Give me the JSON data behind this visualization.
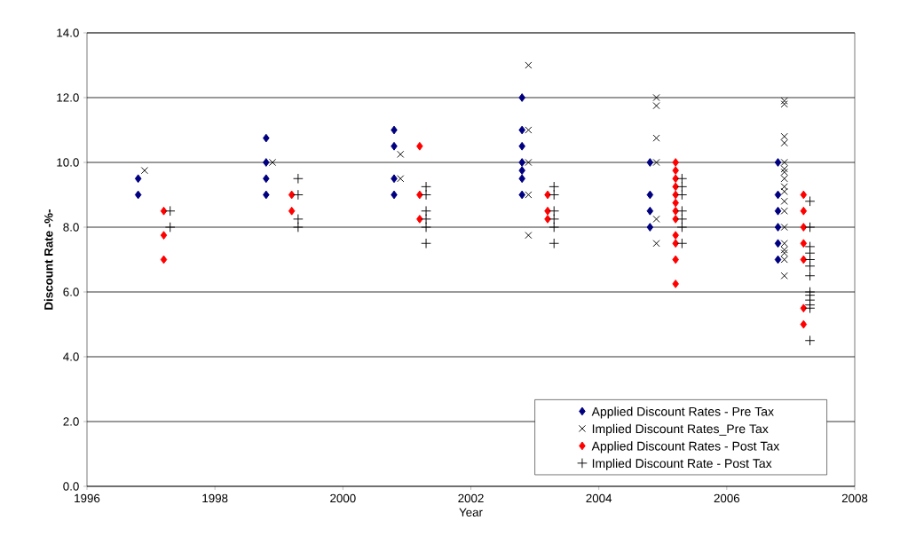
{
  "chart_data": {
    "type": "scatter",
    "xlabel": "Year",
    "ylabel": "Discount Rate -%-",
    "xlim": [
      1996,
      2008
    ],
    "ylim": [
      0,
      14
    ],
    "xticks": [
      1996,
      1998,
      2000,
      2002,
      2004,
      2006,
      2008
    ],
    "yticks": [
      {
        "value": 0,
        "label": "0.0"
      },
      {
        "value": 2,
        "label": "2.0"
      },
      {
        "value": 4,
        "label": "4.0"
      },
      {
        "value": 6,
        "label": "6.0"
      },
      {
        "value": 8,
        "label": "8.0"
      },
      {
        "value": 10,
        "label": "10.0"
      },
      {
        "value": 12,
        "label": "12.0"
      },
      {
        "value": 14,
        "label": "14.0"
      }
    ],
    "grid": "y",
    "legend": "bottom right",
    "series": [
      {
        "name": "Applied Discount Rates - Pre Tax",
        "color": "#000080",
        "marker": "diamond",
        "x": [
          1996.8,
          1996.8,
          1998.8,
          1998.8,
          1998.8,
          1998.8,
          2000.8,
          2000.8,
          2000.8,
          2000.8,
          2002.8,
          2002.8,
          2002.8,
          2002.8,
          2002.8,
          2002.8,
          2002.8,
          2004.8,
          2004.8,
          2004.8,
          2004.8,
          2006.8,
          2006.8,
          2006.8,
          2006.8,
          2006.8,
          2006.8
        ],
        "values": [
          9.5,
          9.0,
          10.75,
          10.0,
          9.5,
          9.0,
          11.0,
          10.5,
          9.5,
          9.0,
          12.0,
          11.0,
          10.5,
          10.0,
          9.75,
          9.5,
          9.0,
          10.0,
          9.0,
          8.5,
          8.0,
          10.0,
          9.0,
          8.5,
          8.0,
          7.5,
          7.0
        ]
      },
      {
        "name": "Implied Discount Rates_Pre Tax",
        "color": "#000000",
        "marker": "cross",
        "x": [
          1996.9,
          1998.9,
          2000.9,
          2000.9,
          2002.9,
          2002.9,
          2002.9,
          2002.9,
          2002.9,
          2004.9,
          2004.9,
          2004.9,
          2004.9,
          2004.9,
          2004.9,
          2006.9,
          2006.9,
          2006.9,
          2006.9,
          2006.9,
          2006.9,
          2006.9,
          2006.9,
          2006.9,
          2006.9,
          2006.9,
          2006.9,
          2006.9,
          2006.9,
          2006.9,
          2006.9,
          2006.9,
          2006.9
        ],
        "values": [
          9.75,
          10.0,
          10.25,
          9.5,
          13.0,
          11.0,
          10.0,
          9.0,
          7.75,
          12.0,
          11.75,
          10.75,
          10.0,
          8.25,
          7.5,
          11.9,
          11.8,
          10.8,
          10.6,
          10.0,
          9.8,
          9.7,
          9.5,
          9.25,
          9.1,
          8.8,
          8.5,
          8.0,
          7.5,
          7.3,
          7.2,
          7.0,
          6.5
        ]
      },
      {
        "name": "Applied Discount Rates - Post Tax",
        "color": "#ff0000",
        "marker": "diamond",
        "x": [
          1997.2,
          1997.2,
          1997.2,
          1999.2,
          1999.2,
          2001.2,
          2001.2,
          2001.2,
          2003.2,
          2003.2,
          2003.2,
          2005.2,
          2005.2,
          2005.2,
          2005.2,
          2005.2,
          2005.2,
          2005.2,
          2005.2,
          2005.2,
          2005.2,
          2005.2,
          2005.2,
          2007.2,
          2007.2,
          2007.2,
          2007.2,
          2007.2,
          2007.2,
          2007.2
        ],
        "values": [
          8.5,
          7.75,
          7.0,
          9.0,
          8.5,
          10.5,
          9.0,
          8.25,
          9.0,
          8.5,
          8.25,
          10.0,
          9.75,
          9.5,
          9.25,
          9.0,
          8.75,
          8.5,
          8.25,
          7.75,
          7.5,
          7.0,
          6.25,
          9.0,
          8.5,
          8.0,
          7.5,
          7.0,
          5.5,
          5.0
        ]
      },
      {
        "name": "Implied Discount Rate - Post Tax",
        "color": "#000000",
        "marker": "plus",
        "x": [
          1997.3,
          1997.3,
          1999.3,
          1999.3,
          1999.3,
          1999.3,
          2001.3,
          2001.3,
          2001.3,
          2001.3,
          2001.3,
          2001.3,
          2003.3,
          2003.3,
          2003.3,
          2003.3,
          2003.3,
          2003.3,
          2005.3,
          2005.3,
          2005.3,
          2005.3,
          2005.3,
          2005.3,
          2005.3,
          2007.3,
          2007.3,
          2007.3,
          2007.3,
          2007.3,
          2007.3,
          2007.3,
          2007.3,
          2007.3,
          2007.3,
          2007.3,
          2007.3,
          2007.3
        ],
        "values": [
          8.5,
          8.0,
          9.5,
          9.0,
          8.25,
          8.0,
          9.25,
          9.0,
          8.5,
          8.25,
          8.0,
          7.5,
          9.25,
          9.0,
          8.5,
          8.25,
          8.0,
          7.5,
          9.5,
          9.25,
          9.0,
          8.5,
          8.25,
          8.0,
          7.5,
          8.8,
          8.0,
          7.4,
          7.2,
          7.0,
          6.8,
          6.5,
          6.0,
          5.9,
          5.75,
          5.6,
          5.5,
          4.5
        ]
      }
    ]
  }
}
